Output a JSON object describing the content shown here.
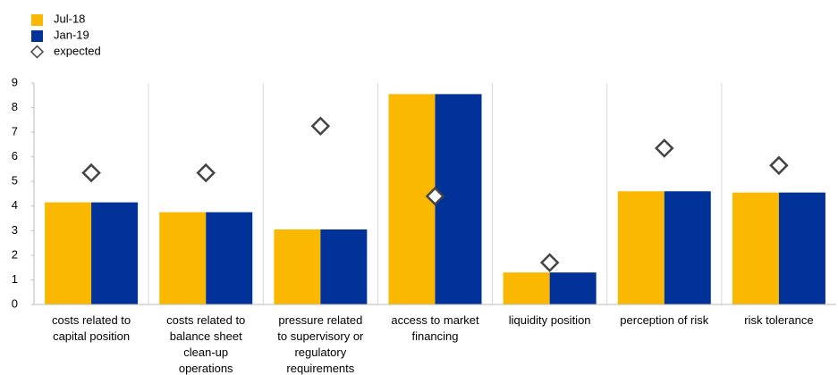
{
  "chart_data": {
    "type": "bar",
    "categories": [
      "costs related to capital position",
      "costs related to balance sheet clean-up operations",
      "pressure related to supervisory or regulatory requirements",
      "access to market financing",
      "liquidity position",
      "perception of risk",
      "risk tolerance"
    ],
    "series": [
      {
        "name": "Jul-18",
        "color": "#fbb800",
        "values": [
          4.15,
          3.75,
          3.05,
          8.55,
          1.3,
          4.6,
          4.55
        ]
      },
      {
        "name": "Jan-19",
        "color": "#003299",
        "values": [
          4.15,
          3.75,
          3.05,
          8.55,
          1.3,
          4.6,
          4.55
        ]
      },
      {
        "name": "expected",
        "type": "scatter",
        "marker": "diamond",
        "color": "#444444",
        "values": [
          5.35,
          5.35,
          7.25,
          4.4,
          1.7,
          6.35,
          5.65
        ]
      }
    ],
    "ylim": [
      0,
      9
    ],
    "yticks": [
      0,
      1,
      2,
      3,
      4,
      5,
      6,
      7,
      8,
      9
    ],
    "grid": false,
    "legend": "top-left"
  }
}
